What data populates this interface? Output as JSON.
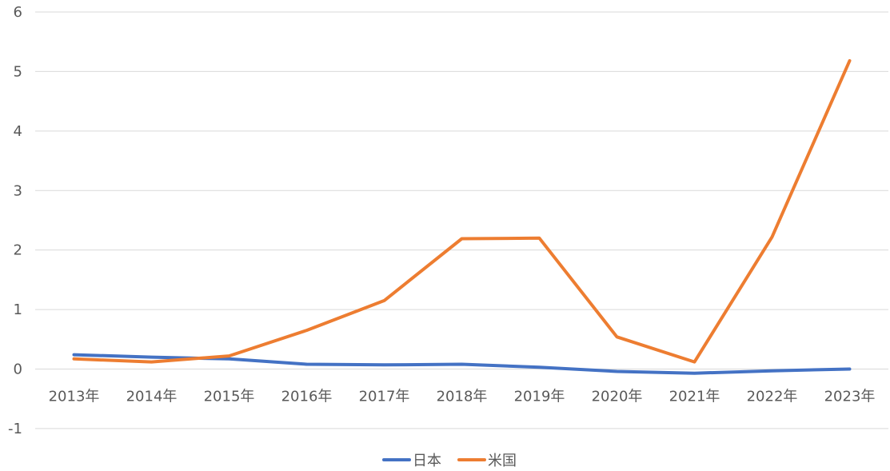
{
  "chart_data": {
    "type": "line",
    "title": "",
    "xlabel": "",
    "ylabel": "",
    "categories": [
      "2013年",
      "2014年",
      "2015年",
      "2016年",
      "2017年",
      "2018年",
      "2019年",
      "2020年",
      "2021年",
      "2022年",
      "2023年"
    ],
    "ylim": [
      -1,
      6
    ],
    "yticks": [
      "-1",
      "0",
      "1",
      "2",
      "3",
      "4",
      "5",
      "6"
    ],
    "grid": true,
    "legend_position": "bottom",
    "series": [
      {
        "name": "日本",
        "color": "#4472c4",
        "values": [
          0.24,
          0.2,
          0.17,
          0.08,
          0.07,
          0.08,
          0.03,
          -0.04,
          -0.07,
          -0.03,
          0.0
        ]
      },
      {
        "name": "米国",
        "color": "#ed7d31",
        "values": [
          0.17,
          0.12,
          0.22,
          0.65,
          1.15,
          2.19,
          2.2,
          0.54,
          0.12,
          2.22,
          5.18
        ]
      }
    ]
  }
}
